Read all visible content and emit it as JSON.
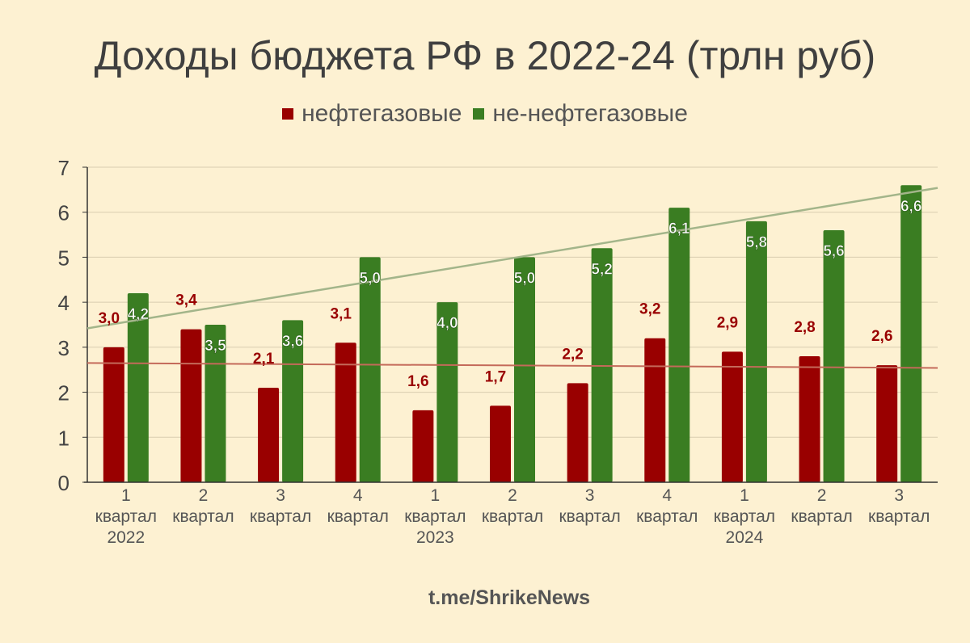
{
  "title": "Доходы бюджета РФ в 2022-24 (трлн руб)",
  "legend": [
    {
      "label": "нефтегазовые",
      "color": "#990000"
    },
    {
      "label": "не-нефтегазовые",
      "color": "#3A7D22"
    }
  ],
  "footer": "t.me/ShrikeNews",
  "colors": {
    "background": "#FDF1D2",
    "oil_gas": "#990000",
    "non_oil_gas": "#3A7D22",
    "trend_oil_gas": "#C46A5A",
    "trend_non_oil_gas": "#A3B58A",
    "grid": "#D9CDB0"
  },
  "chart_data": {
    "type": "bar",
    "title": "Доходы бюджета РФ в 2022-24 (трлн руб)",
    "xlabel": "",
    "ylabel": "",
    "ylim": [
      0,
      7
    ],
    "yticks": [
      0,
      1,
      2,
      3,
      4,
      5,
      6,
      7
    ],
    "grid": true,
    "legend_position": "top",
    "categories": [
      "1 квартал 2022",
      "2 квартал",
      "3 квартал",
      "4 квартал",
      "1 квартал 2023",
      "2 квартал",
      "3 квартал",
      "4 квартал",
      "1 квартал 2024",
      "2 квартал",
      "3 квартал"
    ],
    "category_lines": [
      [
        "1",
        "квартал",
        "2022"
      ],
      [
        "2",
        "квартал",
        ""
      ],
      [
        "3",
        "квартал",
        ""
      ],
      [
        "4",
        "квартал",
        ""
      ],
      [
        "1",
        "квартал",
        "2023"
      ],
      [
        "2",
        "квартал",
        ""
      ],
      [
        "3",
        "квартал",
        ""
      ],
      [
        "4",
        "квартал",
        ""
      ],
      [
        "1",
        "квартал",
        "2024"
      ],
      [
        "2",
        "квартал",
        ""
      ],
      [
        "3",
        "квартал",
        ""
      ]
    ],
    "series": [
      {
        "name": "нефтегазовые",
        "values": [
          3.0,
          3.4,
          2.1,
          3.1,
          1.6,
          1.7,
          2.2,
          3.2,
          2.9,
          2.8,
          2.6
        ],
        "labels": [
          "3,0",
          "3,4",
          "2,1",
          "3,1",
          "1,6",
          "1,7",
          "2,2",
          "3,2",
          "2,9",
          "2,8",
          "2,6"
        ]
      },
      {
        "name": "не-нефтегазовые",
        "values": [
          4.2,
          3.5,
          3.6,
          5.0,
          4.0,
          5.0,
          5.2,
          6.1,
          5.8,
          5.6,
          6.6
        ],
        "labels": [
          "4,2",
          "3,5",
          "3,6",
          "5,0",
          "4,0",
          "5,0",
          "5,2",
          "6,1",
          "5,8",
          "5,6",
          "6,6"
        ]
      }
    ],
    "trendlines": [
      {
        "series": "нефтегазовые",
        "start": 2.65,
        "end": 2.54
      },
      {
        "series": "не-нефтегазовые",
        "start": 3.42,
        "end": 6.54
      }
    ]
  }
}
